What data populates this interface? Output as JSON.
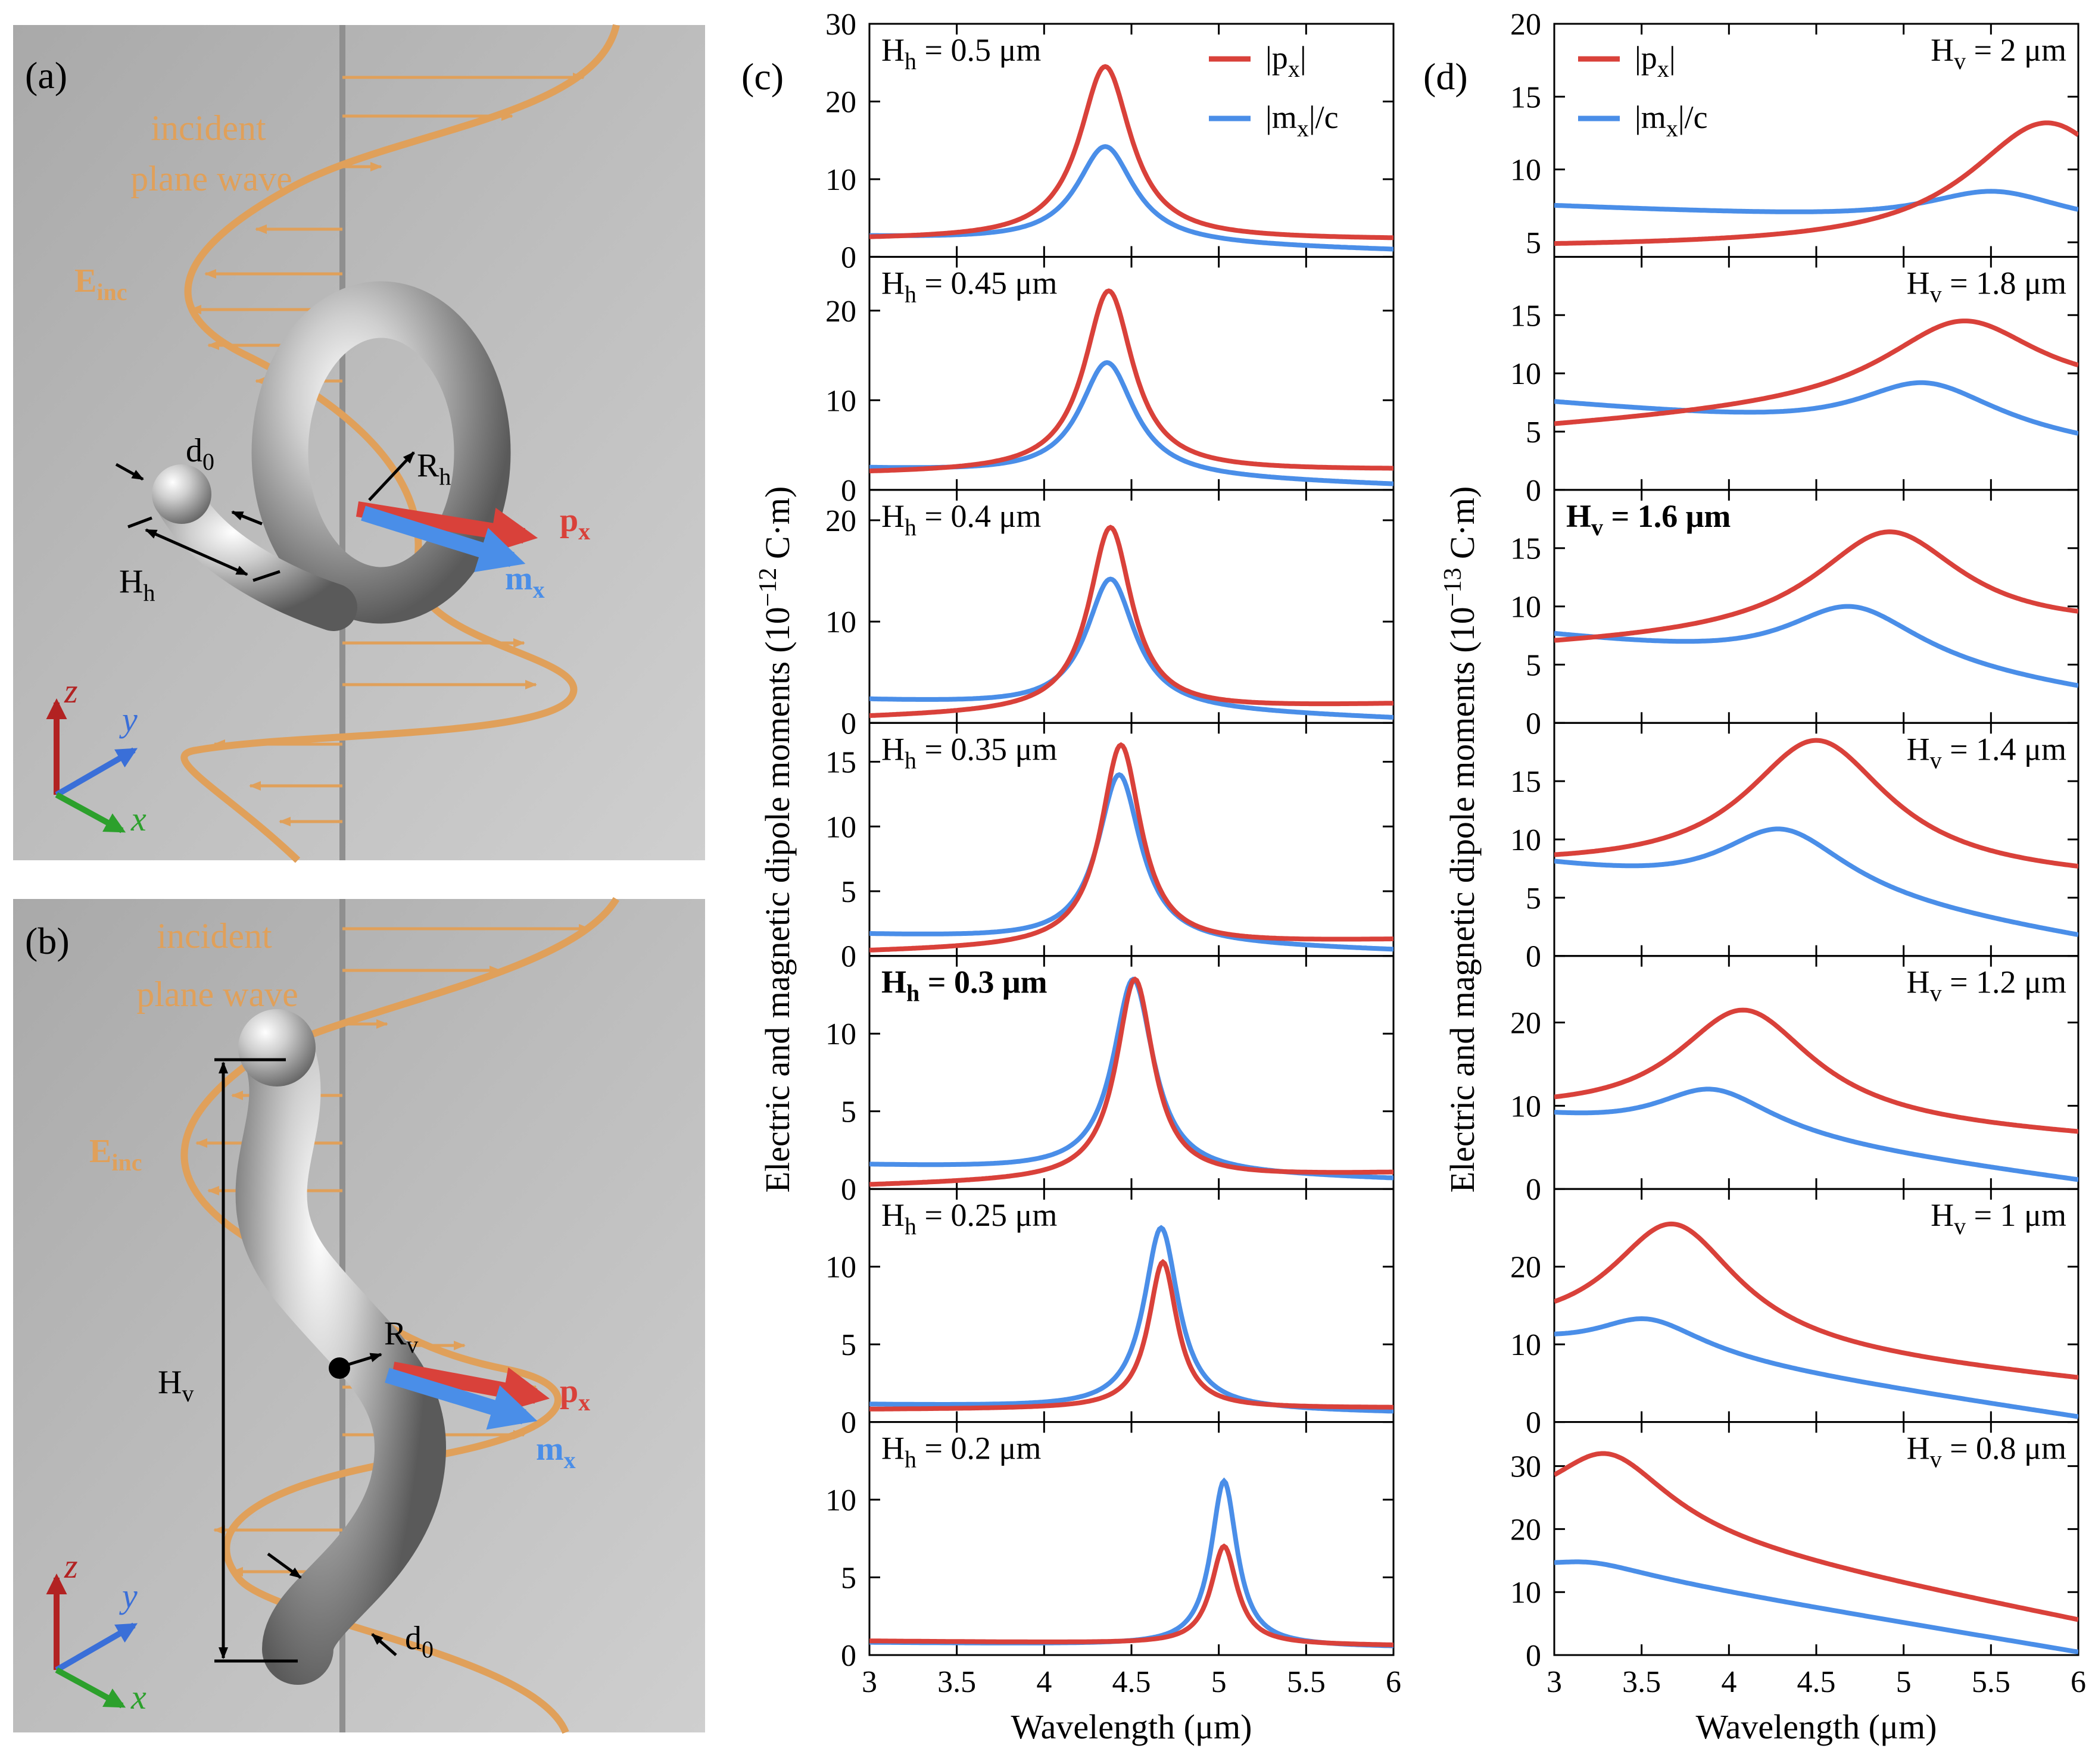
{
  "panel_labels": {
    "a": "(a)",
    "b": "(b)",
    "c": "(c)",
    "d": "(d)"
  },
  "renders": {
    "a": {
      "wave_label_line1": "incident",
      "wave_label_line2": "plane wave",
      "e_main": "E",
      "e_sub": "inc",
      "d_main": "d",
      "d_sub": "0",
      "r_main": "R",
      "r_sub": "h",
      "h_main": "H",
      "h_sub": "h",
      "p_main": "p",
      "p_sub": "x",
      "m_main": "m",
      "m_sub": "x",
      "axis_z": "z",
      "axis_y": "y",
      "axis_x": "x"
    },
    "b": {
      "wave_label_line1": "incident",
      "wave_label_line2": "plane wave",
      "e_main": "E",
      "e_sub": "inc",
      "d_main": "d",
      "d_sub": "0",
      "r_main": "R",
      "r_sub": "v",
      "h_main": "H",
      "h_sub": "v",
      "p_main": "p",
      "p_sub": "x",
      "m_main": "m",
      "m_sub": "x",
      "axis_z": "z",
      "axis_y": "y",
      "axis_x": "x"
    }
  },
  "colors": {
    "p_series": "#d9413a",
    "m_series": "#4a8ee8",
    "wave": "#e0a05a",
    "render_bg": "#b4b4b4",
    "axis_z": "#b22222",
    "axis_y": "#3a6fd8",
    "axis_x": "#2ca02c"
  },
  "chart_data": [
    {
      "type": "line",
      "panel": "(c)",
      "xlabel": "Wavelength (μm)",
      "ylabel": "Electric and magnetic dipole moments (10^-12 C·m)",
      "ylabel_parts": {
        "pre": "Electric and magnetic dipole moments (10",
        "exp": "−12",
        "post": " C·m)"
      },
      "xlim": [
        3,
        6
      ],
      "xticks": [
        "3",
        "3.5",
        "4",
        "4.5",
        "5",
        "5.5",
        "6"
      ],
      "legend": {
        "p_main": "|p",
        "p_sub": "x",
        "p_end": "|",
        "m_main": "|m",
        "m_sub": "x",
        "m_end": "|/c"
      },
      "legend_subplot": 0,
      "subplots": [
        {
          "label_main": "H",
          "label_sub": "h",
          "label_value": " = 0.5 μm",
          "bold": false,
          "label_pos": "left",
          "ylim": [
            0,
            30
          ],
          "yticks": [
            0,
            10,
            20,
            30
          ],
          "p": {
            "base_left": 2.2,
            "base_right": 2.2,
            "peak": 24.5,
            "center": 4.35,
            "width": 0.18
          },
          "m": {
            "base_left": 2.5,
            "base_right": 0.8,
            "peak": 14.2,
            "center": 4.35,
            "width": 0.2
          }
        },
        {
          "label_main": "H",
          "label_sub": "h",
          "label_value": " = 0.45 μm",
          "bold": false,
          "label_pos": "left",
          "ylim": [
            0,
            26
          ],
          "yticks": [
            0,
            10,
            20
          ],
          "p": {
            "base_left": 1.8,
            "base_right": 2.2,
            "peak": 22.2,
            "center": 4.37,
            "width": 0.17
          },
          "m": {
            "base_left": 2.3,
            "base_right": 0.5,
            "peak": 14.2,
            "center": 4.36,
            "width": 0.19
          }
        },
        {
          "label_main": "H",
          "label_sub": "h",
          "label_value": " = 0.4 μm",
          "bold": false,
          "label_pos": "left",
          "ylim": [
            0,
            23
          ],
          "yticks": [
            0,
            10,
            20
          ],
          "p": {
            "base_left": 0.5,
            "base_right": 1.8,
            "peak": 19.3,
            "center": 4.38,
            "width": 0.15
          },
          "m": {
            "base_left": 2.2,
            "base_right": 0.4,
            "peak": 14.2,
            "center": 4.38,
            "width": 0.17
          }
        },
        {
          "label_main": "H",
          "label_sub": "h",
          "label_value": " = 0.35 μm",
          "bold": false,
          "label_pos": "left",
          "ylim": [
            0,
            18
          ],
          "yticks": [
            0,
            5,
            10,
            15
          ],
          "p": {
            "base_left": 0.3,
            "base_right": 1.2,
            "peak": 16.3,
            "center": 4.44,
            "width": 0.14
          },
          "m": {
            "base_left": 1.6,
            "base_right": 0.4,
            "peak": 14.0,
            "center": 4.43,
            "width": 0.15
          }
        },
        {
          "label_main": "H",
          "label_sub": "h",
          "label_value": " = 0.3 μm",
          "bold": true,
          "label_pos": "left",
          "ylim": [
            0,
            15
          ],
          "yticks": [
            0,
            5,
            10
          ],
          "p": {
            "base_left": 0.2,
            "base_right": 1.0,
            "peak": 13.5,
            "center": 4.52,
            "width": 0.13
          },
          "m": {
            "base_left": 1.5,
            "base_right": 0.6,
            "peak": 13.5,
            "center": 4.51,
            "width": 0.14
          }
        },
        {
          "label_main": "H",
          "label_sub": "h",
          "label_value": " = 0.25 μm",
          "bold": false,
          "label_pos": "left",
          "ylim": [
            0,
            15
          ],
          "yticks": [
            0,
            5,
            10
          ],
          "p": {
            "base_left": 0.8,
            "base_right": 0.9,
            "peak": 10.3,
            "center": 4.68,
            "width": 0.1
          },
          "m": {
            "base_left": 1.1,
            "base_right": 0.6,
            "peak": 12.5,
            "center": 4.67,
            "width": 0.12
          }
        },
        {
          "label_main": "H",
          "label_sub": "h",
          "label_value": " = 0.2 μm",
          "bold": false,
          "label_pos": "left",
          "ylim": [
            0,
            15
          ],
          "yticks": [
            0,
            5,
            10
          ],
          "p": {
            "base_left": 0.9,
            "base_right": 0.6,
            "peak": 7.0,
            "center": 5.03,
            "width": 0.09
          },
          "m": {
            "base_left": 0.8,
            "base_right": 0.5,
            "peak": 11.2,
            "center": 5.03,
            "width": 0.09
          }
        }
      ]
    },
    {
      "type": "line",
      "panel": "(d)",
      "xlabel": "Wavelength (μm)",
      "ylabel": "Electric and magnetic dipole moments (10^-13 C·m)",
      "ylabel_parts": {
        "pre": "Electric and magnetic dipole moments (10",
        "exp": "−13",
        "post": " C·m)"
      },
      "xlim": [
        3,
        6
      ],
      "xticks": [
        "3",
        "3.5",
        "4",
        "4.5",
        "5",
        "5.5",
        "6"
      ],
      "legend": {
        "p_main": "|p",
        "p_sub": "x",
        "p_end": "|",
        "m_main": "|m",
        "m_sub": "x",
        "m_end": "|/c"
      },
      "legend_subplot": 0,
      "subplots": [
        {
          "label_main": "H",
          "label_sub": "v",
          "label_value": " = 2 μm",
          "bold": false,
          "label_pos": "right",
          "ylim": [
            4,
            20
          ],
          "yticks": [
            5,
            10,
            15,
            20
          ],
          "p": {
            "base_left": 4.6,
            "base_right": 4.6,
            "peak": 13.2,
            "center": 5.82,
            "width": 0.55
          },
          "m": {
            "base_left": 7.5,
            "base_right": 6.0,
            "peak": 8.5,
            "center": 5.5,
            "width": 0.5
          }
        },
        {
          "label_main": "H",
          "label_sub": "v",
          "label_value": " = 1.8 μm",
          "bold": false,
          "label_pos": "right",
          "ylim": [
            0,
            20
          ],
          "yticks": [
            0,
            5,
            10,
            15
          ],
          "p": {
            "base_left": 5.2,
            "base_right": 8.0,
            "peak": 14.5,
            "center": 5.35,
            "width": 0.55
          },
          "m": {
            "base_left": 7.5,
            "base_right": 3.5,
            "peak": 9.2,
            "center": 5.1,
            "width": 0.5
          }
        },
        {
          "label_main": "H",
          "label_sub": "v",
          "label_value": " = 1.6 μm",
          "bold": true,
          "label_pos": "left",
          "ylim": [
            0,
            20
          ],
          "yticks": [
            0,
            5,
            10,
            15
          ],
          "p": {
            "base_left": 6.4,
            "base_right": 8.0,
            "peak": 16.4,
            "center": 4.92,
            "width": 0.52
          },
          "m": {
            "base_left": 7.5,
            "base_right": 2.3,
            "peak": 10.0,
            "center": 4.68,
            "width": 0.48
          }
        },
        {
          "label_main": "H",
          "label_sub": "v",
          "label_value": " = 1.4 μm",
          "bold": false,
          "label_pos": "right",
          "ylim": [
            0,
            20
          ],
          "yticks": [
            0,
            5,
            10,
            15
          ],
          "p": {
            "base_left": 7.6,
            "base_right": 6.5,
            "peak": 18.5,
            "center": 4.5,
            "width": 0.5
          },
          "m": {
            "base_left": 7.8,
            "base_right": 1.2,
            "peak": 10.9,
            "center": 4.28,
            "width": 0.45
          }
        },
        {
          "label_main": "H",
          "label_sub": "v",
          "label_value": " = 1.2 μm",
          "bold": false,
          "label_pos": "right",
          "ylim": [
            0,
            28
          ],
          "yticks": [
            0,
            10,
            20
          ],
          "p": {
            "base_left": 9.0,
            "base_right": 6.0,
            "peak": 21.5,
            "center": 4.08,
            "width": 0.48
          },
          "m": {
            "base_left": 8.6,
            "base_right": 0.7,
            "peak": 12.0,
            "center": 3.88,
            "width": 0.42
          }
        },
        {
          "label_main": "H",
          "label_sub": "v",
          "label_value": " = 1 μm",
          "bold": false,
          "label_pos": "right",
          "ylim": [
            0,
            30
          ],
          "yticks": [
            0,
            10,
            20
          ],
          "p": {
            "base_left": 11.0,
            "base_right": 5.0,
            "peak": 25.5,
            "center": 3.67,
            "width": 0.45
          },
          "m": {
            "base_left": 10.2,
            "base_right": 0.4,
            "peak": 13.3,
            "center": 3.5,
            "width": 0.38
          }
        },
        {
          "label_main": "H",
          "label_sub": "v",
          "label_value": " = 0.8 μm",
          "bold": false,
          "label_pos": "right",
          "ylim": [
            0,
            37
          ],
          "yticks": [
            0,
            10,
            20,
            30
          ],
          "p": {
            "base_left": 21.0,
            "base_right": 5.0,
            "peak": 32.0,
            "center": 3.28,
            "width": 0.42
          },
          "m": {
            "base_left": 14.0,
            "base_right": 0.3,
            "peak": 14.8,
            "center": 3.13,
            "width": 0.33
          }
        }
      ]
    }
  ]
}
